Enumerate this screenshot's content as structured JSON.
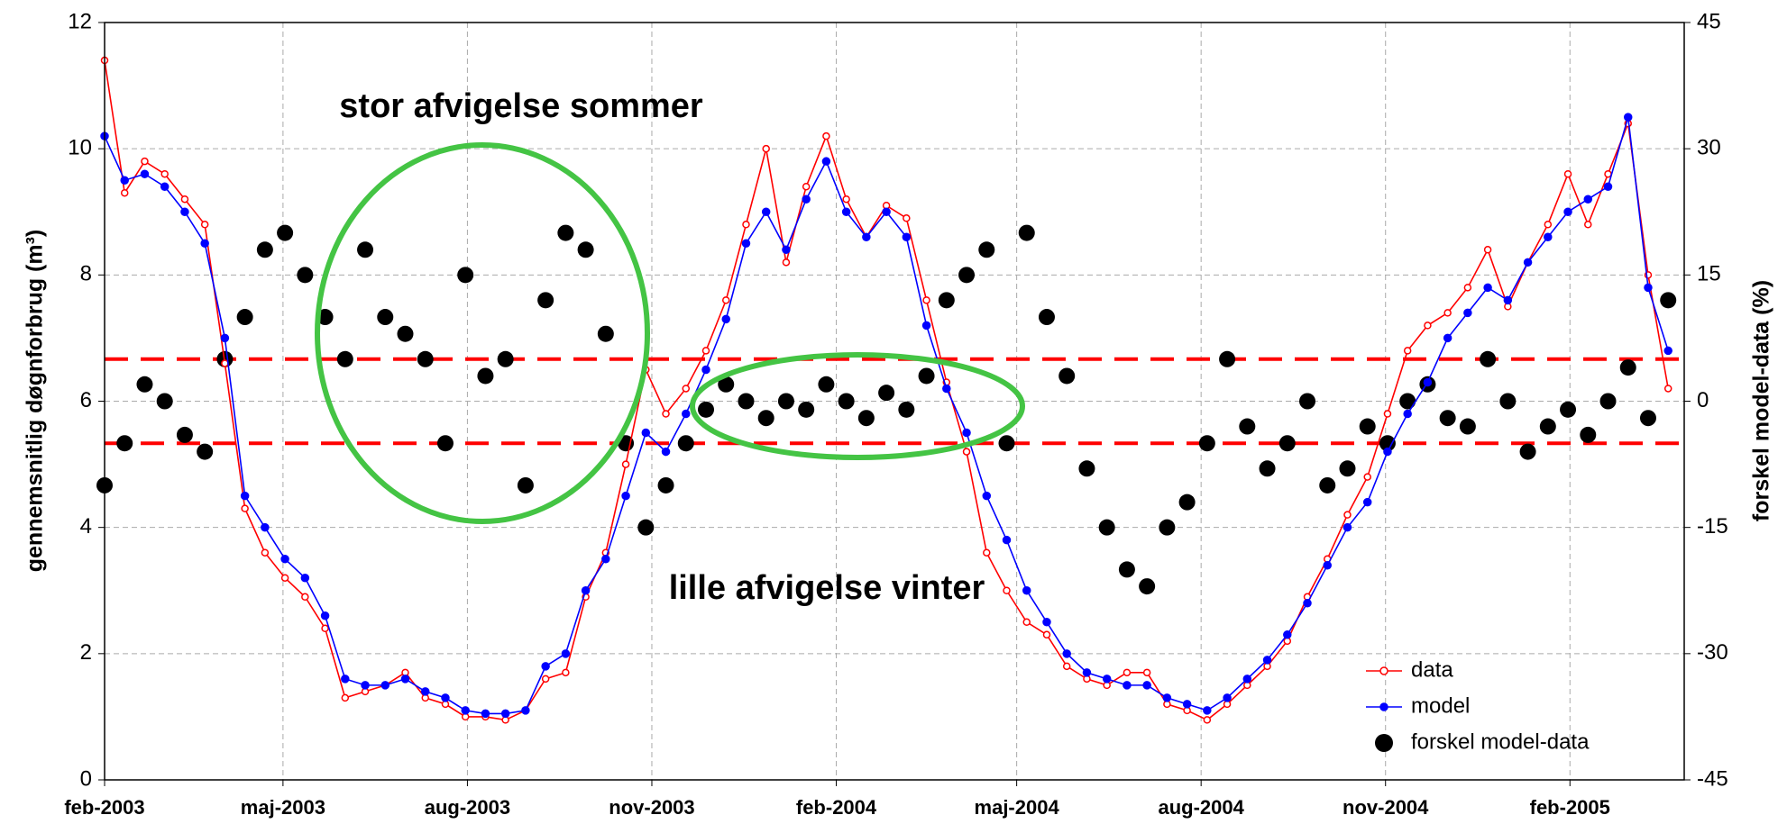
{
  "chart_data": {
    "type": "line",
    "y_label": "gennemsnitlig døgnforbrug (m³)",
    "y2_label": "forskel model-data (%)",
    "annotations": [
      {
        "text": "stor afvigelse sommer",
        "color": "#44c444"
      },
      {
        "text": "lille afvigelse vinter",
        "color": "#44c444"
      }
    ],
    "x": [
      0,
      10,
      20,
      30,
      40,
      50,
      60,
      70,
      80,
      90,
      100,
      110,
      120,
      130,
      140,
      150,
      160,
      170,
      180,
      190,
      200,
      210,
      220,
      230,
      240,
      250,
      260,
      270,
      280,
      290,
      300,
      310,
      320,
      330,
      340,
      350,
      360,
      370,
      380,
      390,
      400,
      410,
      420,
      430,
      440,
      450,
      460,
      470,
      480,
      490,
      500,
      510,
      520,
      530,
      540,
      550,
      560,
      570,
      580,
      590,
      600,
      610,
      620,
      630,
      640,
      650,
      660,
      670,
      680,
      690,
      700,
      710,
      720,
      730,
      740,
      750,
      760,
      770,
      780
    ],
    "series": [
      {
        "name": "data",
        "color": "#ff0000",
        "axis": "y",
        "values": [
          11.4,
          9.3,
          9.8,
          9.6,
          9.2,
          8.8,
          6.6,
          4.3,
          3.6,
          3.2,
          2.9,
          2.4,
          1.3,
          1.4,
          1.5,
          1.7,
          1.3,
          1.2,
          1.0,
          1.0,
          0.95,
          1.1,
          1.6,
          1.7,
          2.9,
          3.6,
          5.0,
          6.5,
          5.8,
          6.2,
          6.8,
          7.6,
          8.8,
          10.0,
          8.2,
          9.4,
          10.2,
          9.2,
          8.6,
          9.1,
          8.9,
          7.6,
          6.3,
          5.2,
          3.6,
          3.0,
          2.5,
          2.3,
          1.8,
          1.6,
          1.5,
          1.7,
          1.7,
          1.2,
          1.1,
          0.95,
          1.2,
          1.5,
          1.8,
          2.2,
          2.9,
          3.5,
          4.2,
          4.8,
          5.8,
          6.8,
          7.2,
          7.4,
          7.8,
          8.4,
          7.5,
          8.2,
          8.8,
          9.6,
          8.8,
          9.6,
          10.4,
          8.0,
          6.2
        ]
      },
      {
        "name": "model",
        "color": "#0000ff",
        "axis": "y",
        "values": [
          10.2,
          9.5,
          9.6,
          9.4,
          9.0,
          8.5,
          7.0,
          4.5,
          4.0,
          3.5,
          3.2,
          2.6,
          1.6,
          1.5,
          1.5,
          1.6,
          1.4,
          1.3,
          1.1,
          1.05,
          1.05,
          1.1,
          1.8,
          2.0,
          3.0,
          3.5,
          4.5,
          5.5,
          5.2,
          5.8,
          6.5,
          7.3,
          8.5,
          9.0,
          8.4,
          9.2,
          9.8,
          9.0,
          8.6,
          9.0,
          8.6,
          7.2,
          6.2,
          5.5,
          4.5,
          3.8,
          3.0,
          2.5,
          2.0,
          1.7,
          1.6,
          1.5,
          1.5,
          1.3,
          1.2,
          1.1,
          1.3,
          1.6,
          1.9,
          2.3,
          2.8,
          3.4,
          4.0,
          4.4,
          5.2,
          5.8,
          6.3,
          7.0,
          7.4,
          7.8,
          7.6,
          8.2,
          8.6,
          9.0,
          9.2,
          9.4,
          10.5,
          7.8,
          6.8
        ]
      },
      {
        "name": "forskel model-data",
        "color": "#000000",
        "axis": "y2",
        "type": "scatter",
        "values": [
          -10,
          -5,
          2,
          0,
          -4,
          -6,
          5,
          10,
          18,
          20,
          15,
          10,
          5,
          18,
          10,
          8,
          5,
          -5,
          15,
          3,
          5,
          -10,
          12,
          20,
          18,
          8,
          -5,
          -15,
          -10,
          -5,
          -1,
          2,
          0,
          -2,
          0,
          -1,
          2,
          0,
          -2,
          1,
          -1,
          3,
          12,
          15,
          18,
          -5,
          20,
          10,
          3,
          -8,
          -15,
          -20,
          -22,
          -15,
          -12,
          -5,
          5,
          -3,
          -8,
          -5,
          0,
          -10,
          -8,
          -3,
          -5,
          0,
          2,
          -2,
          -3,
          5,
          0,
          -6,
          -3,
          -1,
          -4,
          0,
          4,
          -2,
          12
        ]
      }
    ],
    "reference_lines": [
      {
        "value": 5,
        "axis": "y2",
        "color": "#ff0000"
      },
      {
        "value": -5,
        "axis": "y2",
        "color": "#ff0000"
      }
    ],
    "xlim": [
      0,
      788
    ],
    "xticks": [
      {
        "value": 0,
        "label": "feb-2003"
      },
      {
        "value": 89,
        "label": "maj-2003"
      },
      {
        "value": 181,
        "label": "aug-2003"
      },
      {
        "value": 273,
        "label": "nov-2003"
      },
      {
        "value": 365,
        "label": "feb-2004"
      },
      {
        "value": 455,
        "label": "maj-2004"
      },
      {
        "value": 547,
        "label": "aug-2004"
      },
      {
        "value": 639,
        "label": "nov-2004"
      },
      {
        "value": 731,
        "label": "feb-2005"
      }
    ],
    "ylim": [
      0,
      12
    ],
    "yticks": [
      0,
      2,
      4,
      6,
      8,
      10,
      12
    ],
    "y2lim": [
      -45,
      45
    ],
    "y2ticks": [
      -45,
      -30,
      -15,
      0,
      15,
      30,
      45
    ],
    "grid": true,
    "legend": "lower right"
  }
}
